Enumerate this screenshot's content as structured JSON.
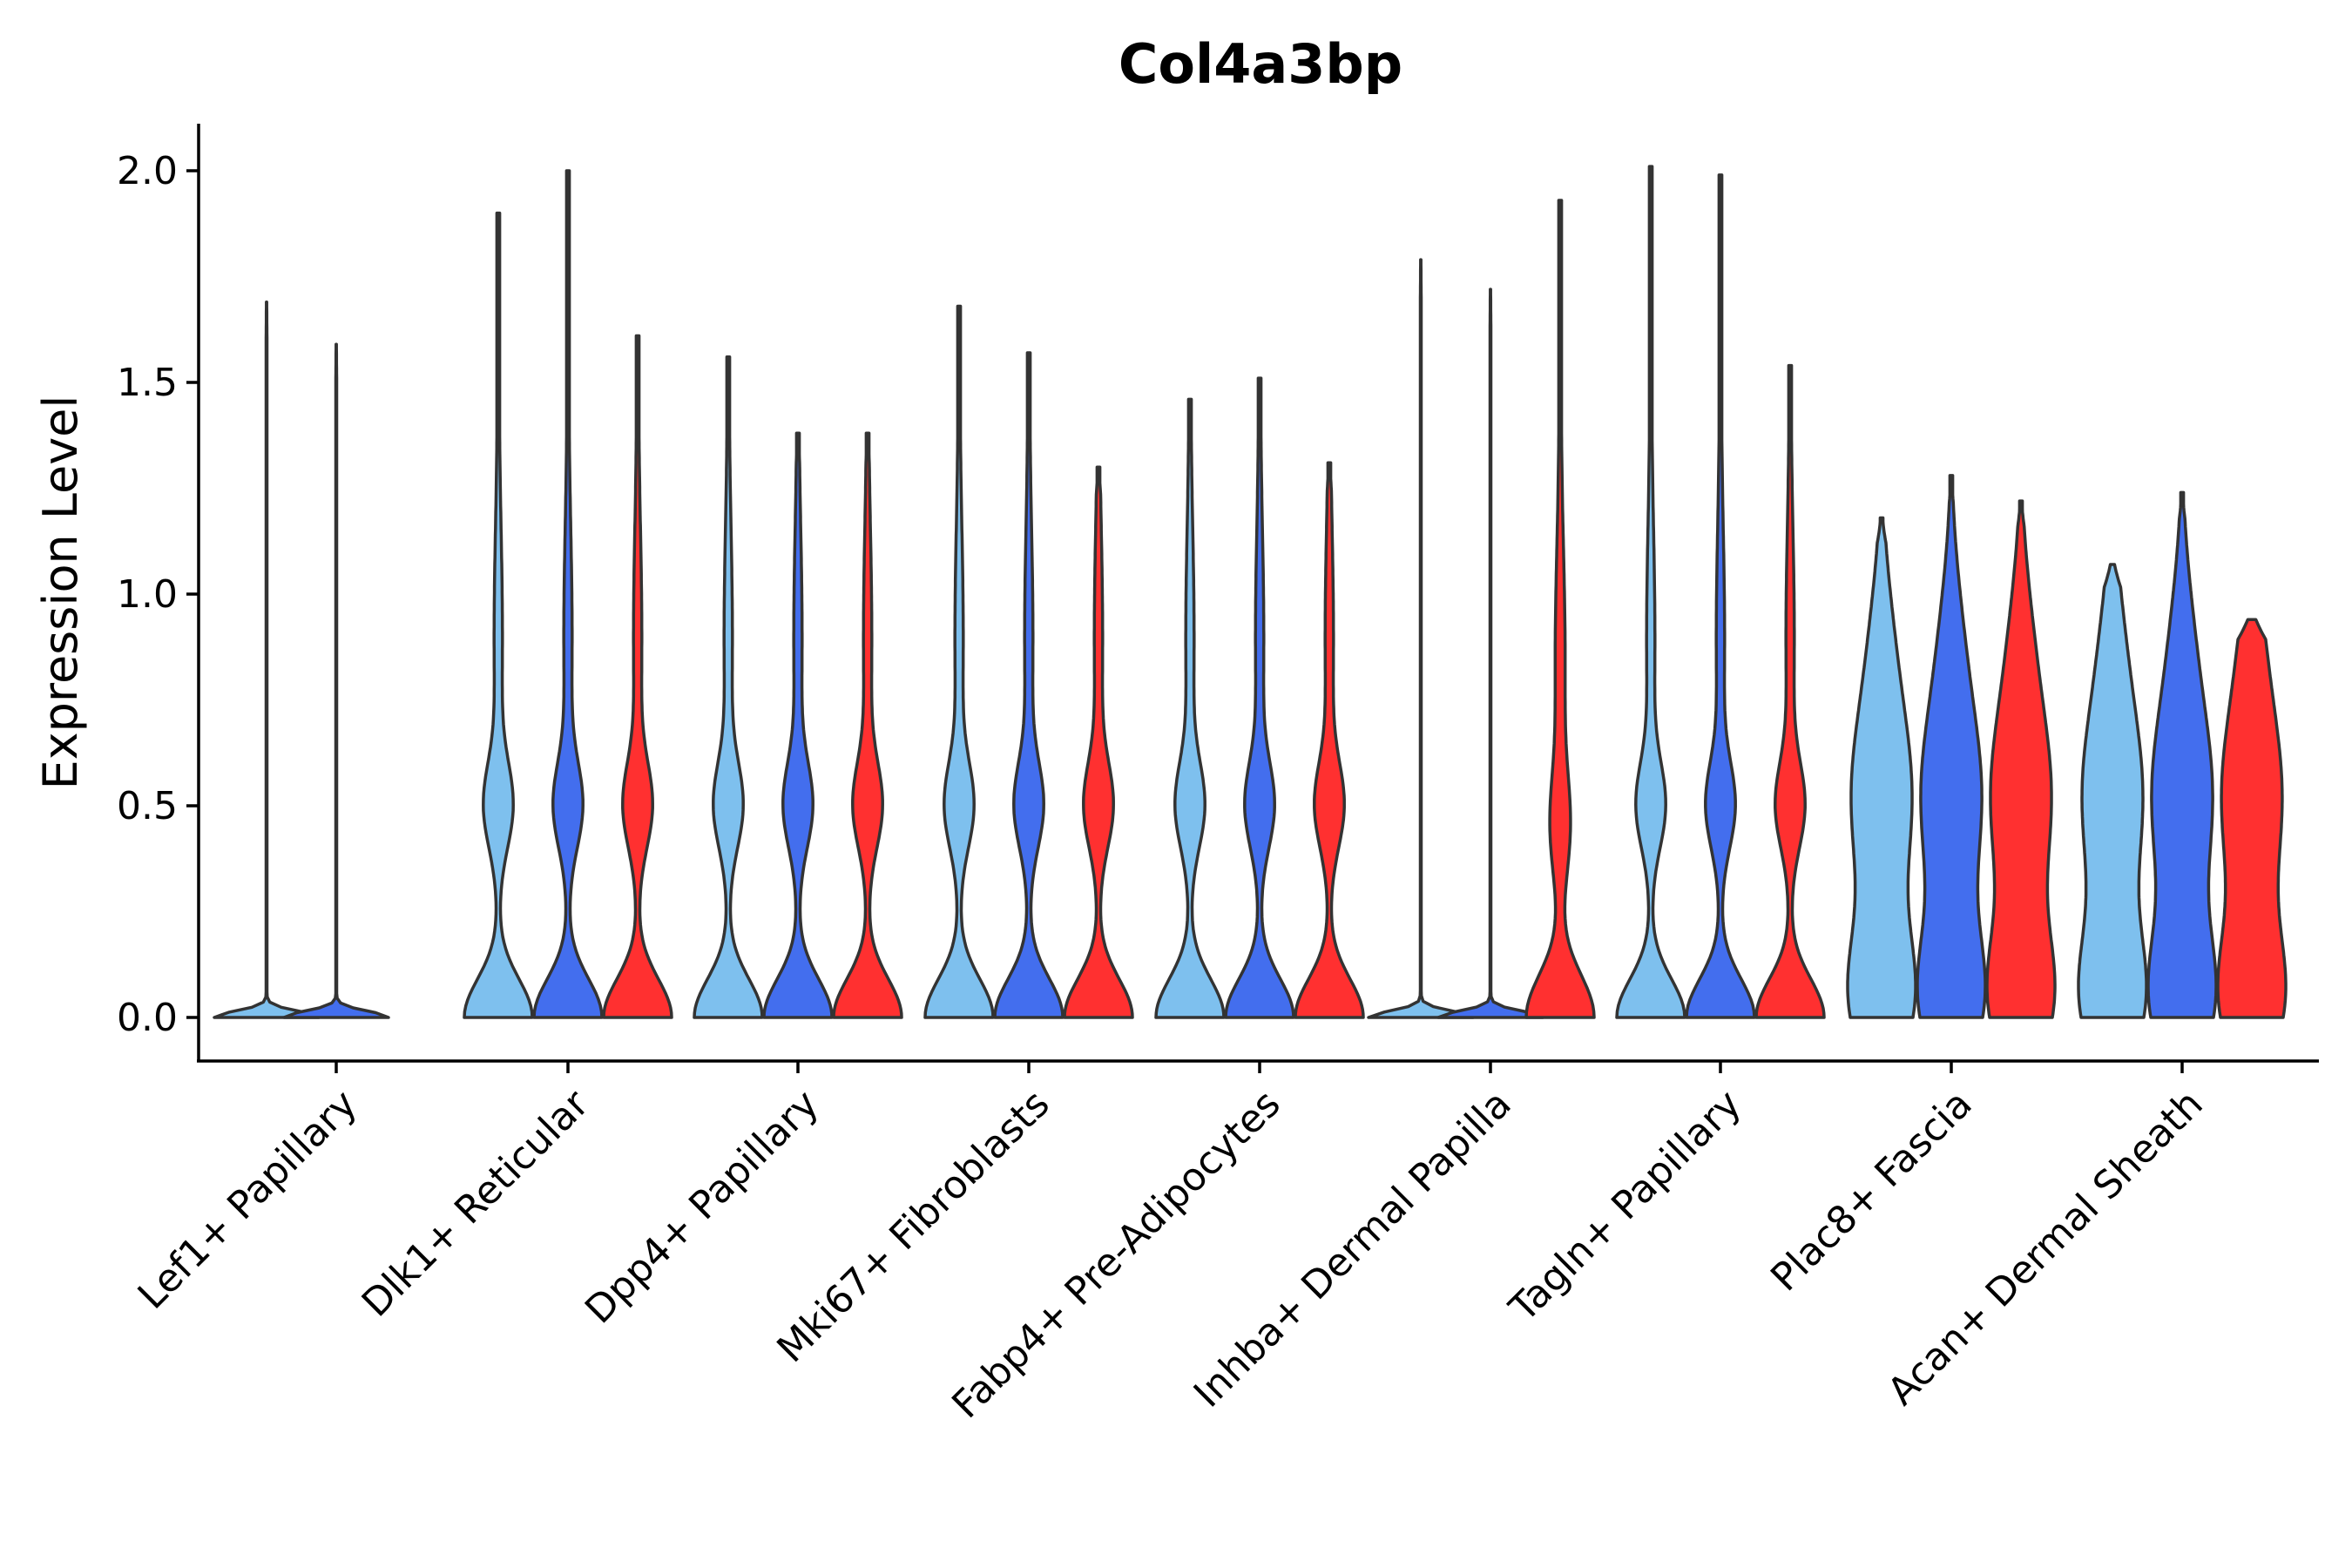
{
  "chart_data": {
    "type": "violin",
    "title": "Col4a3bp",
    "xlabel": "",
    "ylabel": "Expression Level",
    "ylim": [
      -0.1,
      2.1
    ],
    "yticks": [
      "0.0",
      "0.5",
      "1.0",
      "1.5",
      "2.0"
    ],
    "ytick_values": [
      0.0,
      0.5,
      1.0,
      1.5,
      2.0
    ],
    "grid": false,
    "legend": "none",
    "categories": [
      "Lef1+ Papillary",
      "Dlk1+ Reticular",
      "Dpp4+ Papillary",
      "Mki67+ Fibroblasts",
      "Fabp4+ Pre-Adipocytes",
      "Inhba+ Dermal Papilla",
      "Tagln+ Papillary",
      "Plac8+ Fascia",
      "Acan+ Dermal Sheath"
    ],
    "series": [
      {
        "name": "group 1",
        "color": "#7EC0EE",
        "max": [
          1.69,
          1.9,
          1.56,
          1.68,
          1.46,
          1.79,
          2.01,
          1.18,
          1.07
        ],
        "density_level": [
          0,
          2,
          2,
          2,
          2,
          0,
          2,
          3,
          3
        ]
      },
      {
        "name": "group 2",
        "color": "#436EEE",
        "max": [
          1.59,
          2.0,
          1.38,
          1.57,
          1.51,
          1.72,
          1.99,
          1.28,
          1.24
        ],
        "density_level": [
          0,
          2,
          2,
          2,
          2,
          0,
          2,
          3,
          3
        ]
      },
      {
        "name": "group 3",
        "color": "#FF3030",
        "max": [
          null,
          1.61,
          1.38,
          1.3,
          1.31,
          1.93,
          1.54,
          1.22,
          0.94
        ],
        "density_level": [
          null,
          2,
          2,
          2,
          2,
          1,
          2,
          3,
          3
        ]
      }
    ]
  }
}
